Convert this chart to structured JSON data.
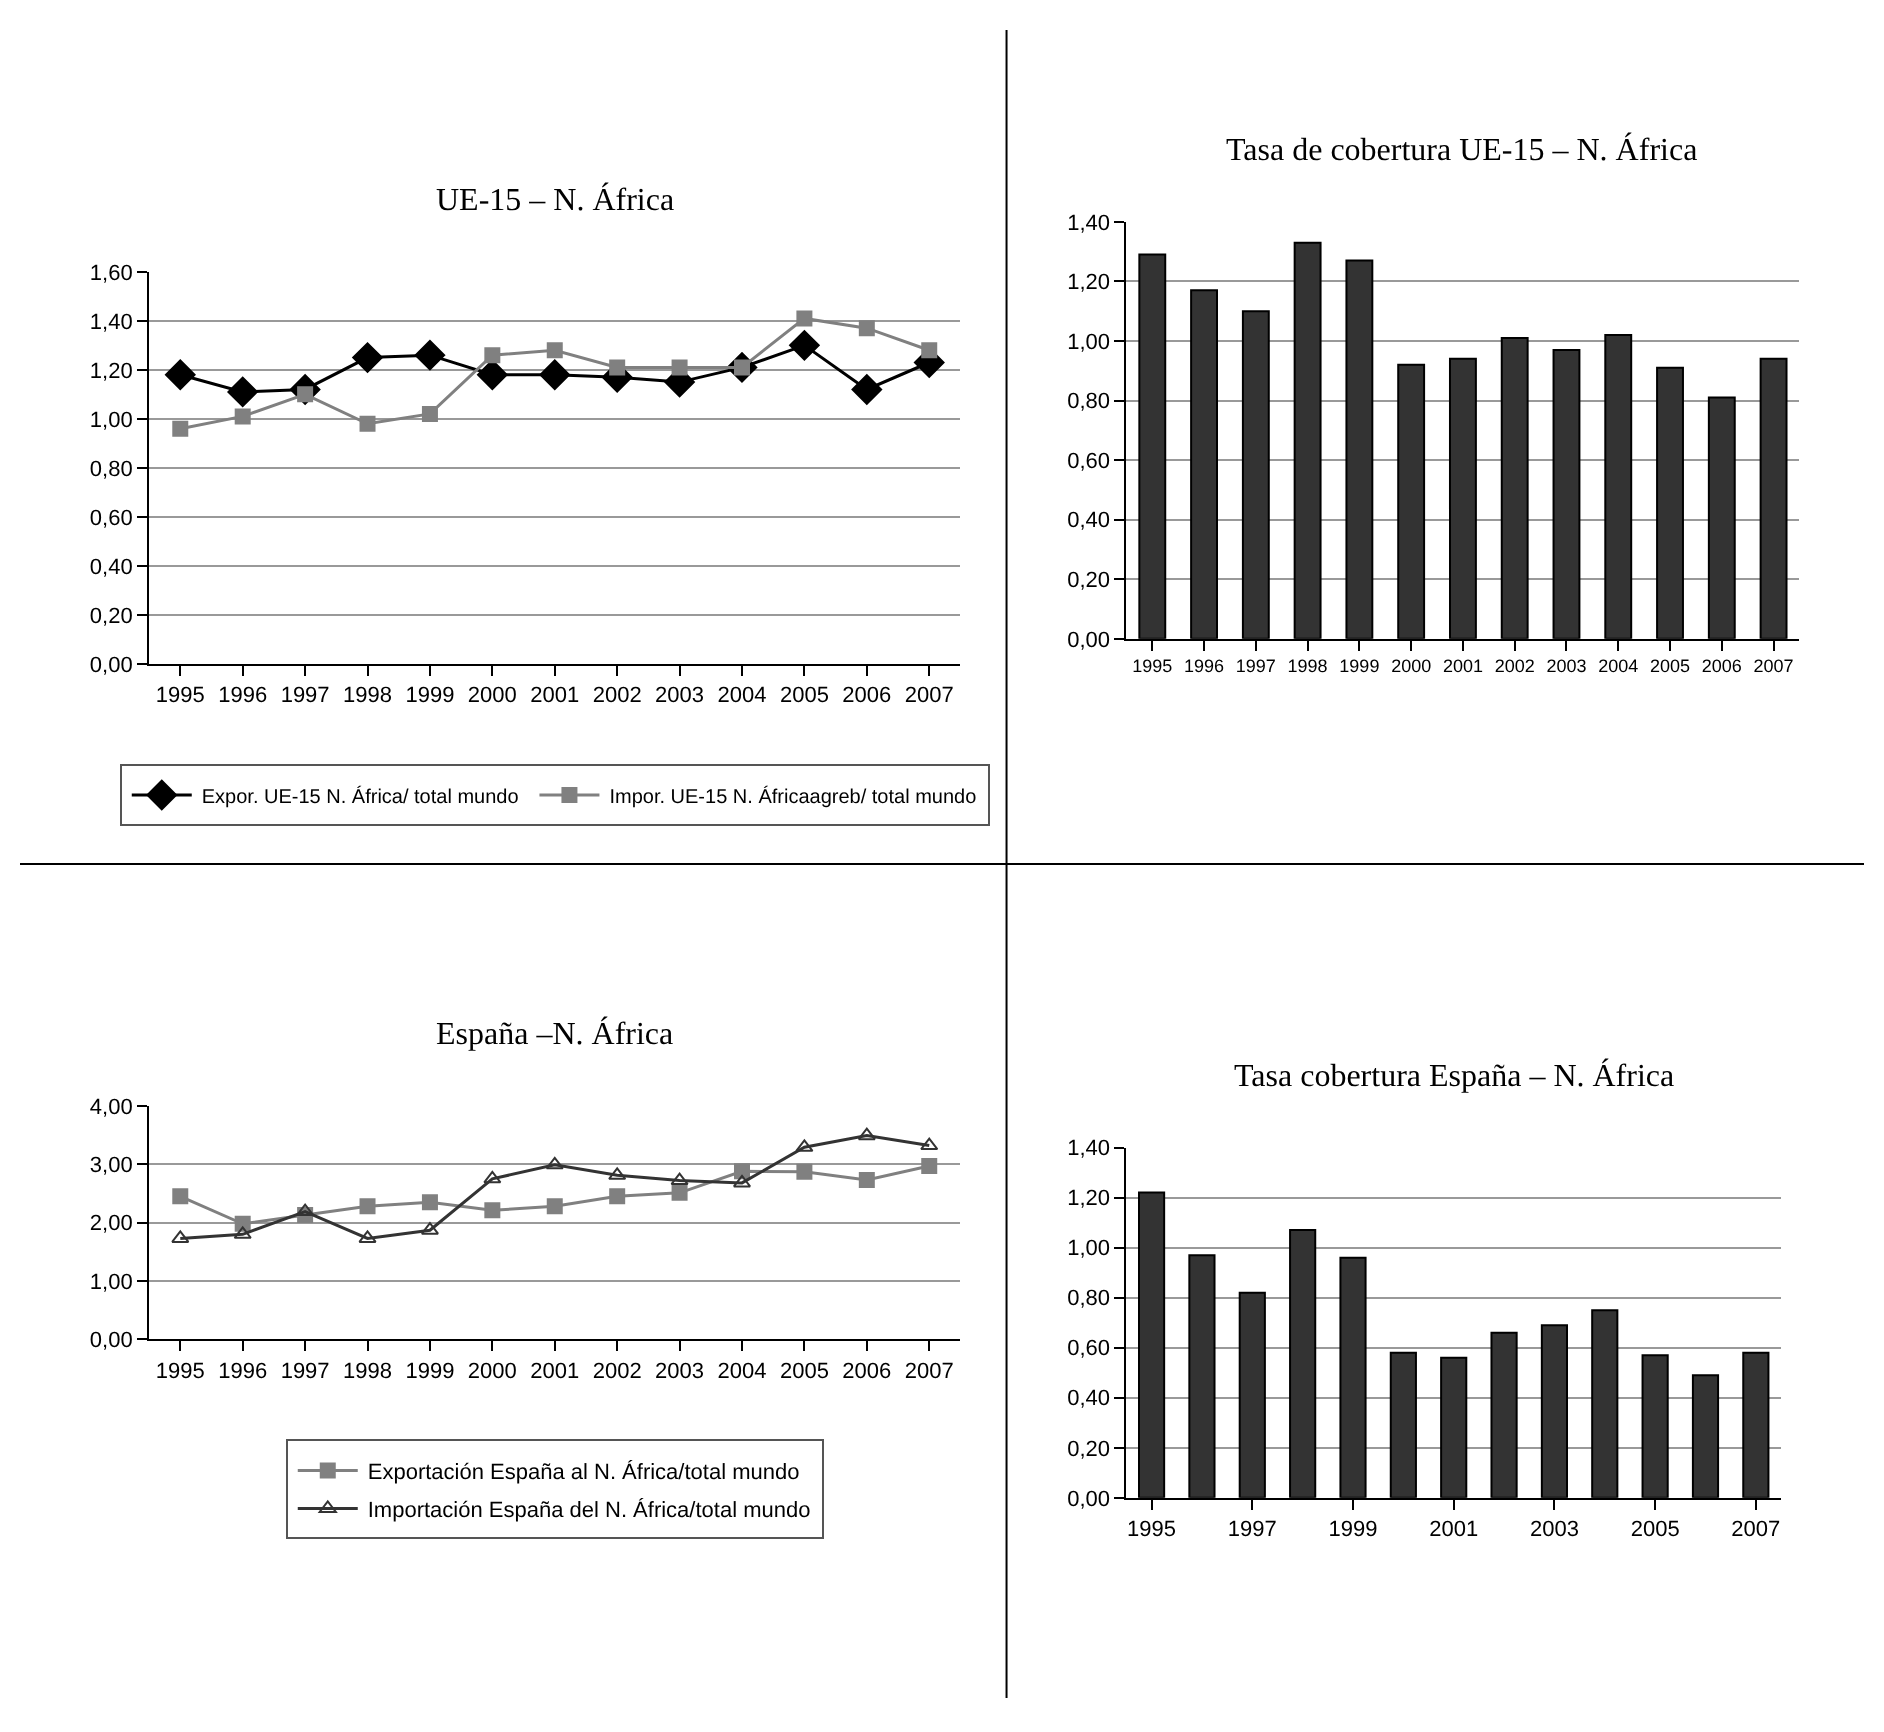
{
  "chart_data": [
    {
      "type": "line",
      "title": "UE-15 – N. África",
      "categories": [
        "1995",
        "1996",
        "1997",
        "1998",
        "1999",
        "2000",
        "2001",
        "2002",
        "2003",
        "2004",
        "2005",
        "2006",
        "2007"
      ],
      "ylim": [
        0,
        1.6
      ],
      "yticks": [
        {
          "value": 0,
          "label": "0,00"
        },
        {
          "value": 0.2,
          "label": "0,20"
        },
        {
          "value": 0.4,
          "label": "0,40"
        },
        {
          "value": 0.6,
          "label": "0,60"
        },
        {
          "value": 0.8,
          "label": "0,80"
        },
        {
          "value": 1.0,
          "label": "1,00"
        },
        {
          "value": 1.2,
          "label": "1,20"
        },
        {
          "value": 1.4,
          "label": "1,40"
        },
        {
          "value": 1.6,
          "label": "1,60"
        }
      ],
      "grid": "y",
      "legend": "bottom",
      "series": [
        {
          "name": "Expor. UE-15 N. África/ total mundo",
          "color": "#000000",
          "marker": "diamond",
          "values": [
            1.18,
            1.11,
            1.12,
            1.25,
            1.26,
            1.18,
            1.18,
            1.17,
            1.15,
            1.21,
            1.3,
            1.12,
            1.23
          ]
        },
        {
          "name": "Impor. UE-15 N. Áfricaagreb/ total mundo",
          "color": "#808080",
          "marker": "square",
          "values": [
            0.96,
            1.01,
            1.1,
            0.98,
            1.02,
            1.26,
            1.28,
            1.21,
            1.21,
            1.21,
            1.41,
            1.37,
            1.28
          ]
        }
      ]
    },
    {
      "type": "bar",
      "title": "Tasa de cobertura UE-15 – N. África",
      "categories": [
        "1995",
        "1996",
        "1997",
        "1998",
        "1999",
        "2000",
        "2001",
        "2002",
        "2003",
        "2004",
        "2005",
        "2006",
        "2007"
      ],
      "ylim": [
        0,
        1.4
      ],
      "yticks": [
        {
          "value": 0,
          "label": "0,00"
        },
        {
          "value": 0.2,
          "label": "0,20"
        },
        {
          "value": 0.4,
          "label": "0,40"
        },
        {
          "value": 0.6,
          "label": "0,60"
        },
        {
          "value": 0.8,
          "label": "0,80"
        },
        {
          "value": 1.0,
          "label": "1,00"
        },
        {
          "value": 1.2,
          "label": "1,20"
        },
        {
          "value": 1.4,
          "label": "1,40"
        }
      ],
      "grid": "y",
      "series": [
        {
          "color": "#333333",
          "values": [
            1.29,
            1.17,
            1.1,
            1.33,
            1.27,
            0.92,
            0.94,
            1.01,
            0.97,
            1.02,
            0.91,
            0.81,
            0.94
          ]
        }
      ]
    },
    {
      "type": "line",
      "title": "España –N. África",
      "categories": [
        "1995",
        "1996",
        "1997",
        "1998",
        "1999",
        "2000",
        "2001",
        "2002",
        "2003",
        "2004",
        "2005",
        "2006",
        "2007"
      ],
      "ylim": [
        0,
        4
      ],
      "yticks": [
        {
          "value": 0,
          "label": "0,00"
        },
        {
          "value": 1,
          "label": "1,00"
        },
        {
          "value": 2,
          "label": "2,00"
        },
        {
          "value": 3,
          "label": "3,00"
        },
        {
          "value": 4,
          "label": "4,00"
        }
      ],
      "grid": "y",
      "legend": "bottom",
      "series": [
        {
          "name": "Exportación España al N. África/total mundo",
          "color": "#808080",
          "marker": "square",
          "values": [
            2.45,
            1.98,
            2.13,
            2.28,
            2.35,
            2.21,
            2.28,
            2.45,
            2.51,
            2.88,
            2.87,
            2.73,
            2.97
          ]
        },
        {
          "name": "Importación España del N. África/total mundo",
          "color": "#333333",
          "marker": "triangle",
          "values": [
            1.73,
            1.8,
            2.19,
            1.73,
            1.87,
            2.75,
            2.99,
            2.81,
            2.72,
            2.68,
            3.29,
            3.49,
            3.32
          ]
        }
      ]
    },
    {
      "type": "bar",
      "title": "Tasa cobertura España – N. África",
      "categories": [
        "1995",
        null,
        "1997",
        null,
        "1999",
        null,
        "2001",
        null,
        "2003",
        null,
        "2005",
        null,
        "2007"
      ],
      "ylim": [
        0,
        1.4
      ],
      "yticks": [
        {
          "value": 0,
          "label": "0,00"
        },
        {
          "value": 0.2,
          "label": "0,20"
        },
        {
          "value": 0.4,
          "label": "0,40"
        },
        {
          "value": 0.6,
          "label": "0,60"
        },
        {
          "value": 0.8,
          "label": "0,80"
        },
        {
          "value": 1.0,
          "label": "1,00"
        },
        {
          "value": 1.2,
          "label": "1,20"
        },
        {
          "value": 1.4,
          "label": "1,40"
        }
      ],
      "grid": "y",
      "series": [
        {
          "color": "#333333",
          "values": [
            1.22,
            0.97,
            0.82,
            1.07,
            0.96,
            0.58,
            0.56,
            0.66,
            0.69,
            0.75,
            0.57,
            0.49,
            0.58
          ]
        }
      ]
    }
  ]
}
